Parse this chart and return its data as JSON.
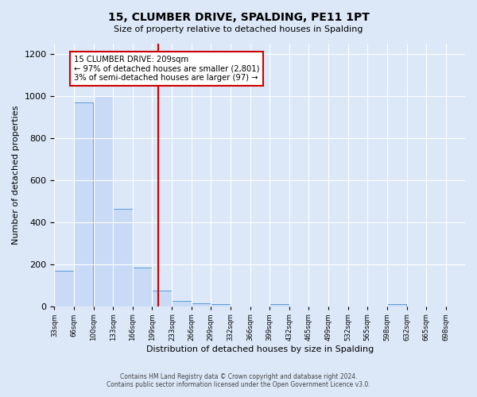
{
  "title": "15, CLUMBER DRIVE, SPALDING, PE11 1PT",
  "subtitle": "Size of property relative to detached houses in Spalding",
  "xlabel": "Distribution of detached houses by size in Spalding",
  "ylabel": "Number of detached properties",
  "bin_edges": [
    33,
    66,
    100,
    133,
    166,
    199,
    233,
    266,
    299,
    332,
    366,
    399,
    432,
    465,
    499,
    532,
    565,
    598,
    632,
    665,
    698
  ],
  "bin_labels": [
    "33sqm",
    "66sqm",
    "100sqm",
    "133sqm",
    "166sqm",
    "199sqm",
    "233sqm",
    "266sqm",
    "299sqm",
    "332sqm",
    "366sqm",
    "399sqm",
    "432sqm",
    "465sqm",
    "499sqm",
    "532sqm",
    "565sqm",
    "598sqm",
    "632sqm",
    "665sqm",
    "698sqm"
  ],
  "bar_heights": [
    170,
    970,
    1000,
    465,
    185,
    75,
    25,
    15,
    10,
    0,
    0,
    10,
    0,
    0,
    0,
    0,
    0,
    10,
    0,
    0
  ],
  "bar_color": "#c8daf5",
  "bar_edge_color": "#5b9bd5",
  "vline_x": 209,
  "vline_color": "#cc0000",
  "ylim": [
    0,
    1250
  ],
  "yticks": [
    0,
    200,
    400,
    600,
    800,
    1000,
    1200
  ],
  "annotation_text": "15 CLUMBER DRIVE: 209sqm\n← 97% of detached houses are smaller (2,801)\n3% of semi-detached houses are larger (97) →",
  "annotation_box_color": "#ffffff",
  "annotation_box_edge": "#cc0000",
  "footer_line1": "Contains HM Land Registry data © Crown copyright and database right 2024.",
  "footer_line2": "Contains public sector information licensed under the Open Government Licence v3.0.",
  "background_color": "#dce8f8",
  "plot_bg_color": "#dce8f8"
}
